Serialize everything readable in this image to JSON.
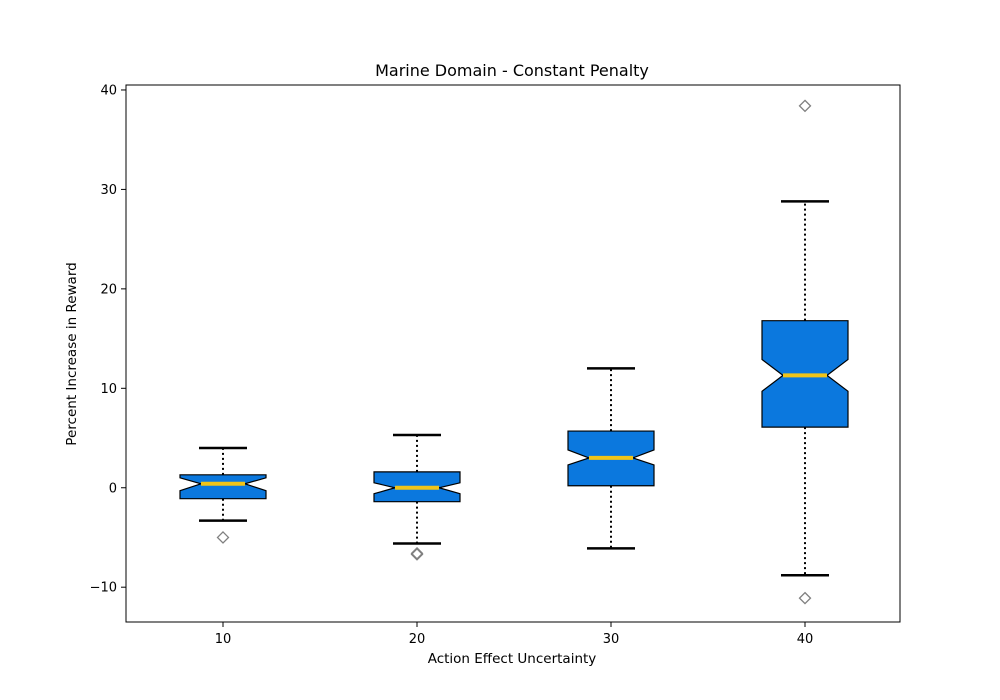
{
  "chart_data": {
    "type": "box",
    "title": "Marine Domain - Constant Penalty",
    "xlabel": "Action Effect Uncertainty",
    "ylabel": "Percent Increase in Reward",
    "categories": [
      "10",
      "20",
      "30",
      "40"
    ],
    "yticks": [
      -10,
      0,
      10,
      20,
      30,
      40
    ],
    "ylim": [
      -13.5,
      40.5
    ],
    "grid": false,
    "notched": true,
    "colors": {
      "box_fill": "#0b78de",
      "median": "#f0c419",
      "whisker": "#000000",
      "outlier": "#808080"
    },
    "boxes": [
      {
        "category": "10",
        "whisker_low": -3.3,
        "q1": -1.1,
        "median": 0.4,
        "q3": 1.3,
        "whisker_high": 4.0,
        "notch_low": -0.3,
        "notch_high": 1.0,
        "outliers": [
          -5.0
        ]
      },
      {
        "category": "20",
        "whisker_low": -5.6,
        "q1": -1.4,
        "median": 0.0,
        "q3": 1.6,
        "whisker_high": 5.3,
        "notch_low": -0.6,
        "notch_high": 0.5,
        "outliers": [
          -6.6,
          -6.7
        ]
      },
      {
        "category": "30",
        "whisker_low": -6.1,
        "q1": 0.2,
        "median": 3.0,
        "q3": 5.7,
        "whisker_high": 12.0,
        "notch_low": 2.3,
        "notch_high": 3.8,
        "outliers": []
      },
      {
        "category": "40",
        "whisker_low": -8.8,
        "q1": 6.1,
        "median": 11.3,
        "q3": 16.8,
        "whisker_high": 28.8,
        "notch_low": 9.7,
        "notch_high": 12.9,
        "outliers": [
          38.4,
          -11.1
        ]
      }
    ]
  }
}
